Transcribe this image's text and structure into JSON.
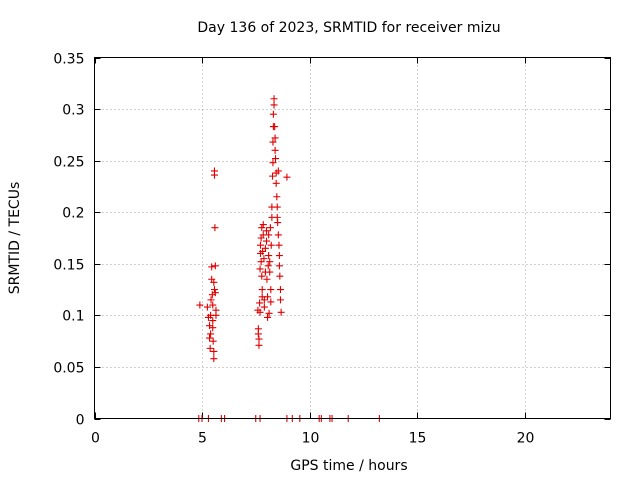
{
  "chart_data": {
    "type": "scatter",
    "title": "Day 136 of 2023, SRMTID for receiver mizu",
    "xlabel": "GPS time / hours",
    "ylabel": "SRMTID / TECUs",
    "xlim": [
      0,
      24
    ],
    "ylim": [
      0,
      0.35
    ],
    "xticks": [
      0,
      5,
      10,
      15,
      20
    ],
    "yticks": [
      0,
      0.05,
      0.1,
      0.15,
      0.2,
      0.25,
      0.3,
      0.35
    ],
    "xtick_labels": [
      "0",
      "5",
      "10",
      "15",
      "20"
    ],
    "ytick_labels": [
      "0",
      "0.05",
      "0.1",
      "0.15",
      "0.2",
      "0.25",
      "0.3",
      "0.35"
    ],
    "grid": true,
    "marker": "+",
    "color": "#e00000",
    "series": [
      {
        "name": "SRMTID",
        "points": [
          [
            4.9,
            0.11
          ],
          [
            5.25,
            0.108
          ],
          [
            5.3,
            0.098
          ],
          [
            5.35,
            0.09
          ],
          [
            5.35,
            0.078
          ],
          [
            5.38,
            0.068
          ],
          [
            5.4,
            0.082
          ],
          [
            5.4,
            0.1
          ],
          [
            5.42,
            0.115
          ],
          [
            5.45,
            0.147
          ],
          [
            5.45,
            0.135
          ],
          [
            5.48,
            0.12
          ],
          [
            5.5,
            0.11
          ],
          [
            5.5,
            0.095
          ],
          [
            5.5,
            0.088
          ],
          [
            5.52,
            0.075
          ],
          [
            5.55,
            0.065
          ],
          [
            5.55,
            0.058
          ],
          [
            5.55,
            0.132
          ],
          [
            5.58,
            0.125
          ],
          [
            5.58,
            0.24
          ],
          [
            5.58,
            0.236
          ],
          [
            5.6,
            0.185
          ],
          [
            5.62,
            0.148
          ],
          [
            5.62,
            0.122
          ],
          [
            5.65,
            0.105
          ],
          [
            5.65,
            0.1
          ],
          [
            7.6,
            0.105
          ],
          [
            7.62,
            0.087
          ],
          [
            7.62,
            0.082
          ],
          [
            7.65,
            0.077
          ],
          [
            7.65,
            0.071
          ],
          [
            7.68,
            0.112
          ],
          [
            7.7,
            0.103
          ],
          [
            7.7,
            0.145
          ],
          [
            7.72,
            0.16
          ],
          [
            7.72,
            0.168
          ],
          [
            7.75,
            0.175
          ],
          [
            7.75,
            0.152
          ],
          [
            7.78,
            0.185
          ],
          [
            7.78,
            0.138
          ],
          [
            7.8,
            0.125
          ],
          [
            7.8,
            0.118
          ],
          [
            7.82,
            0.162
          ],
          [
            7.85,
            0.178
          ],
          [
            7.85,
            0.188
          ],
          [
            7.88,
            0.155
          ],
          [
            7.9,
            0.115
          ],
          [
            7.9,
            0.108
          ],
          [
            7.95,
            0.142
          ],
          [
            7.95,
            0.165
          ],
          [
            8.0,
            0.172
          ],
          [
            8.0,
            0.182
          ],
          [
            8.02,
            0.135
          ],
          [
            8.05,
            0.118
          ],
          [
            8.05,
            0.098
          ],
          [
            8.08,
            0.148
          ],
          [
            8.1,
            0.178
          ],
          [
            8.1,
            0.158
          ],
          [
            8.12,
            0.102
          ],
          [
            8.15,
            0.152
          ],
          [
            8.15,
            0.142
          ],
          [
            8.18,
            0.185
          ],
          [
            8.2,
            0.125
          ],
          [
            8.2,
            0.113
          ],
          [
            8.22,
            0.168
          ],
          [
            8.25,
            0.205
          ],
          [
            8.25,
            0.195
          ],
          [
            8.28,
            0.235
          ],
          [
            8.3,
            0.248
          ],
          [
            8.3,
            0.268
          ],
          [
            8.32,
            0.283
          ],
          [
            8.32,
            0.295
          ],
          [
            8.35,
            0.304
          ],
          [
            8.35,
            0.31
          ],
          [
            8.38,
            0.283
          ],
          [
            8.4,
            0.272
          ],
          [
            8.4,
            0.26
          ],
          [
            8.42,
            0.252
          ],
          [
            8.45,
            0.238
          ],
          [
            8.45,
            0.228
          ],
          [
            8.48,
            0.215
          ],
          [
            8.5,
            0.205
          ],
          [
            8.5,
            0.195
          ],
          [
            8.52,
            0.19
          ],
          [
            8.55,
            0.24
          ],
          [
            8.55,
            0.178
          ],
          [
            8.58,
            0.168
          ],
          [
            8.6,
            0.158
          ],
          [
            8.6,
            0.148
          ],
          [
            8.62,
            0.138
          ],
          [
            8.65,
            0.125
          ],
          [
            8.65,
            0.115
          ],
          [
            8.68,
            0.103
          ],
          [
            8.95,
            0.234
          ],
          [
            4.85,
            0.0
          ],
          [
            5.0,
            0.0
          ],
          [
            5.3,
            0.0
          ],
          [
            5.9,
            0.0
          ],
          [
            6.05,
            0.0
          ],
          [
            7.5,
            0.0
          ],
          [
            7.7,
            0.0
          ],
          [
            8.95,
            0.0
          ],
          [
            9.2,
            0.0
          ],
          [
            9.55,
            0.0
          ],
          [
            10.45,
            0.0
          ],
          [
            10.55,
            0.0
          ],
          [
            10.95,
            0.0
          ],
          [
            11.05,
            0.0
          ],
          [
            11.8,
            0.0
          ],
          [
            13.25,
            0.0
          ]
        ]
      }
    ]
  }
}
